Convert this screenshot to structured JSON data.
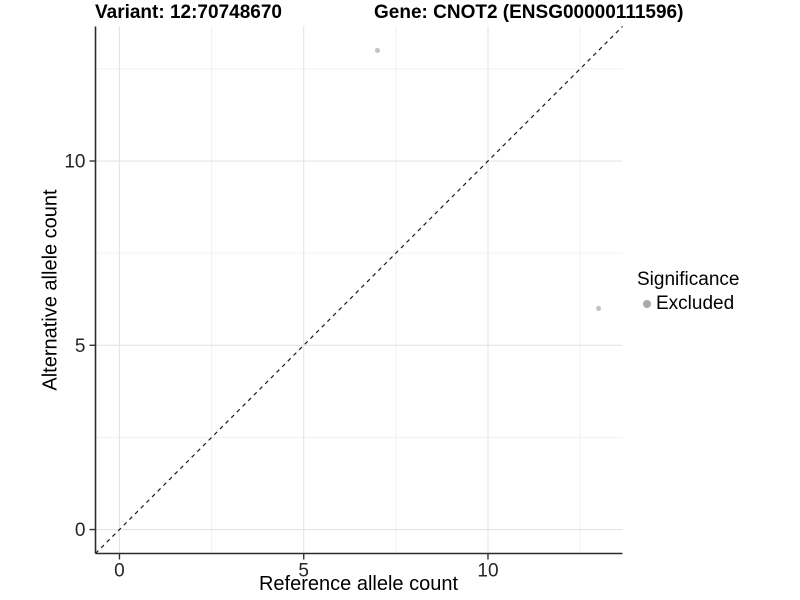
{
  "titles": {
    "variant": "Variant: 12:70748670",
    "gene": "Gene: CNOT2 (ENSG00000111596)"
  },
  "chart_data": {
    "type": "scatter",
    "title_left": "Variant: 12:70748670",
    "title_right": "Gene: CNOT2 (ENSG00000111596)",
    "xlabel": "Reference allele count",
    "ylabel": "Alternative allele count",
    "xlim": [
      -0.65,
      13.65
    ],
    "ylim": [
      -0.65,
      13.65
    ],
    "x_ticks": [
      0,
      5,
      10
    ],
    "y_ticks": [
      0,
      5,
      10
    ],
    "x_minor_ticks": [
      2.5,
      7.5,
      12.5
    ],
    "y_minor_ticks": [
      2.5,
      7.5,
      12.5
    ],
    "grid": true,
    "reference_line": {
      "type": "identity y=x",
      "style": "dashed",
      "color": "#1a1a1a"
    },
    "series": [
      {
        "name": "Excluded",
        "marker": "circle",
        "color": "#c3c3c3",
        "points": [
          {
            "x": 7,
            "y": 13
          },
          {
            "x": 13,
            "y": 6
          }
        ]
      }
    ],
    "legend": {
      "title": "Significance",
      "position": "right",
      "entries": [
        {
          "label": "Excluded",
          "color": "#aaaaaa"
        }
      ]
    },
    "style": {
      "axis_line_color": "#2b2b2b",
      "tick_color": "#333333",
      "tick_label_color": "#262626",
      "major_grid_color": "#e4e4e4",
      "minor_grid_color": "#f1f1f1",
      "background": "#ffffff"
    }
  }
}
